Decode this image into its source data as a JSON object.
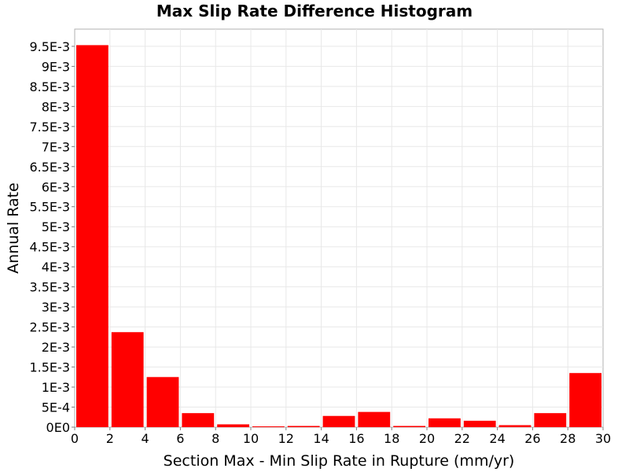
{
  "chart_data": {
    "type": "bar",
    "title": "Max Slip Rate Difference Histogram",
    "xlabel": "Section Max - Min Slip Rate in Rupture (mm/yr)",
    "ylabel": "Annual Rate",
    "xlim": [
      0,
      30
    ],
    "ylim": [
      0,
      0.00993
    ],
    "grid": true,
    "bar_color": "#ff0000",
    "bin_width": 2,
    "x_ticks": [
      {
        "value": 0,
        "label": "0"
      },
      {
        "value": 2,
        "label": "2"
      },
      {
        "value": 4,
        "label": "4"
      },
      {
        "value": 6,
        "label": "6"
      },
      {
        "value": 8,
        "label": "8"
      },
      {
        "value": 10,
        "label": "10"
      },
      {
        "value": 12,
        "label": "12"
      },
      {
        "value": 14,
        "label": "14"
      },
      {
        "value": 16,
        "label": "16"
      },
      {
        "value": 18,
        "label": "18"
      },
      {
        "value": 20,
        "label": "20"
      },
      {
        "value": 22,
        "label": "22"
      },
      {
        "value": 24,
        "label": "24"
      },
      {
        "value": 26,
        "label": "26"
      },
      {
        "value": 28,
        "label": "28"
      },
      {
        "value": 30,
        "label": "30"
      }
    ],
    "y_ticks": [
      {
        "value": 0,
        "label": "0E0"
      },
      {
        "value": 0.0005,
        "label": "5E-4"
      },
      {
        "value": 0.001,
        "label": "1E-3"
      },
      {
        "value": 0.0015,
        "label": "1.5E-3"
      },
      {
        "value": 0.002,
        "label": "2E-3"
      },
      {
        "value": 0.0025,
        "label": "2.5E-3"
      },
      {
        "value": 0.003,
        "label": "3E-3"
      },
      {
        "value": 0.0035,
        "label": "3.5E-3"
      },
      {
        "value": 0.004,
        "label": "4E-3"
      },
      {
        "value": 0.0045,
        "label": "4.5E-3"
      },
      {
        "value": 0.005,
        "label": "5E-3"
      },
      {
        "value": 0.0055,
        "label": "5.5E-3"
      },
      {
        "value": 0.006,
        "label": "6E-3"
      },
      {
        "value": 0.0065,
        "label": "6.5E-3"
      },
      {
        "value": 0.007,
        "label": "7E-3"
      },
      {
        "value": 0.0075,
        "label": "7.5E-3"
      },
      {
        "value": 0.008,
        "label": "8E-3"
      },
      {
        "value": 0.0085,
        "label": "8.5E-3"
      },
      {
        "value": 0.009,
        "label": "9E-3"
      },
      {
        "value": 0.0095,
        "label": "9.5E-3"
      }
    ],
    "bins": [
      {
        "x0": 0,
        "x1": 2,
        "value": 0.00953
      },
      {
        "x0": 2,
        "x1": 4,
        "value": 0.00237
      },
      {
        "x0": 4,
        "x1": 6,
        "value": 0.00125
      },
      {
        "x0": 6,
        "x1": 8,
        "value": 0.00035
      },
      {
        "x0": 8,
        "x1": 10,
        "value": 7e-05
      },
      {
        "x0": 10,
        "x1": 12,
        "value": 2e-05
      },
      {
        "x0": 12,
        "x1": 14,
        "value": 3e-05
      },
      {
        "x0": 14,
        "x1": 16,
        "value": 0.00028
      },
      {
        "x0": 16,
        "x1": 18,
        "value": 0.00038
      },
      {
        "x0": 18,
        "x1": 20,
        "value": 3e-05
      },
      {
        "x0": 20,
        "x1": 22,
        "value": 0.00022
      },
      {
        "x0": 22,
        "x1": 24,
        "value": 0.00016
      },
      {
        "x0": 24,
        "x1": 26,
        "value": 5e-05
      },
      {
        "x0": 26,
        "x1": 28,
        "value": 0.00035
      },
      {
        "x0": 28,
        "x1": 30,
        "value": 0.00135
      }
    ]
  }
}
